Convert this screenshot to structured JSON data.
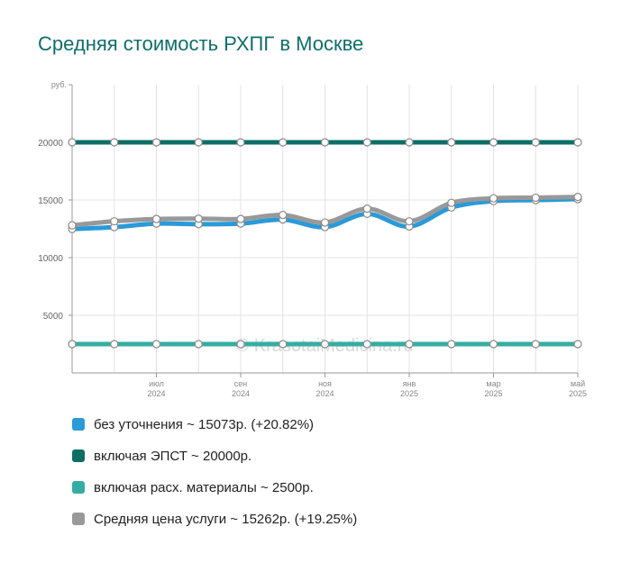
{
  "chart_data": {
    "type": "line",
    "title": "Средняя стоимость РХПГ в Москве",
    "ylabel": "руб.",
    "ylim": [
      0,
      25000
    ],
    "yticks": [
      5000,
      10000,
      15000,
      20000
    ],
    "x": [
      "2024-05",
      "2024-06",
      "2024-07",
      "2024-08",
      "2024-09",
      "2024-10",
      "2024-11",
      "2024-12",
      "2025-01",
      "2025-02",
      "2025-03",
      "2025-04",
      "2025-05"
    ],
    "x_tick_labels": [
      {
        "month": "июл",
        "year": "2024",
        "x": "2024-07"
      },
      {
        "month": "сен",
        "year": "2024",
        "x": "2024-09"
      },
      {
        "month": "ноя",
        "year": "2024",
        "x": "2024-11"
      },
      {
        "month": "янв",
        "year": "2025",
        "x": "2025-01"
      },
      {
        "month": "мар",
        "year": "2025",
        "x": "2025-03"
      },
      {
        "month": "май",
        "year": "2025",
        "x": "2025-05"
      }
    ],
    "grid": true,
    "legend_position": "bottom",
    "watermark": "© KrasotaiMedicina.ru",
    "series": [
      {
        "label": "без уточнения ~ 15073р. (+20.82%)",
        "color": "#2a9ad8",
        "values": [
          12480,
          12650,
          12950,
          12900,
          12950,
          13300,
          12650,
          13800,
          12700,
          14350,
          14900,
          14990,
          15073
        ]
      },
      {
        "label": "включая ЭПСТ ~ 20000р.",
        "color": "#0e6e66",
        "values": [
          20000,
          20000,
          20000,
          20000,
          20000,
          20000,
          20000,
          20000,
          20000,
          20000,
          20000,
          20000,
          20000
        ]
      },
      {
        "label": "включая расх. материалы ~ 2500р.",
        "color": "#36ada3",
        "values": [
          2500,
          2500,
          2500,
          2500,
          2500,
          2500,
          2500,
          2500,
          2500,
          2500,
          2500,
          2500,
          2500
        ]
      },
      {
        "label": "Средняя цена услуги ~ 15262р. (+19.25%)",
        "color": "#999999",
        "values": [
          12800,
          13150,
          13350,
          13380,
          13350,
          13700,
          13050,
          14250,
          13150,
          14750,
          15150,
          15200,
          15262
        ]
      }
    ]
  }
}
